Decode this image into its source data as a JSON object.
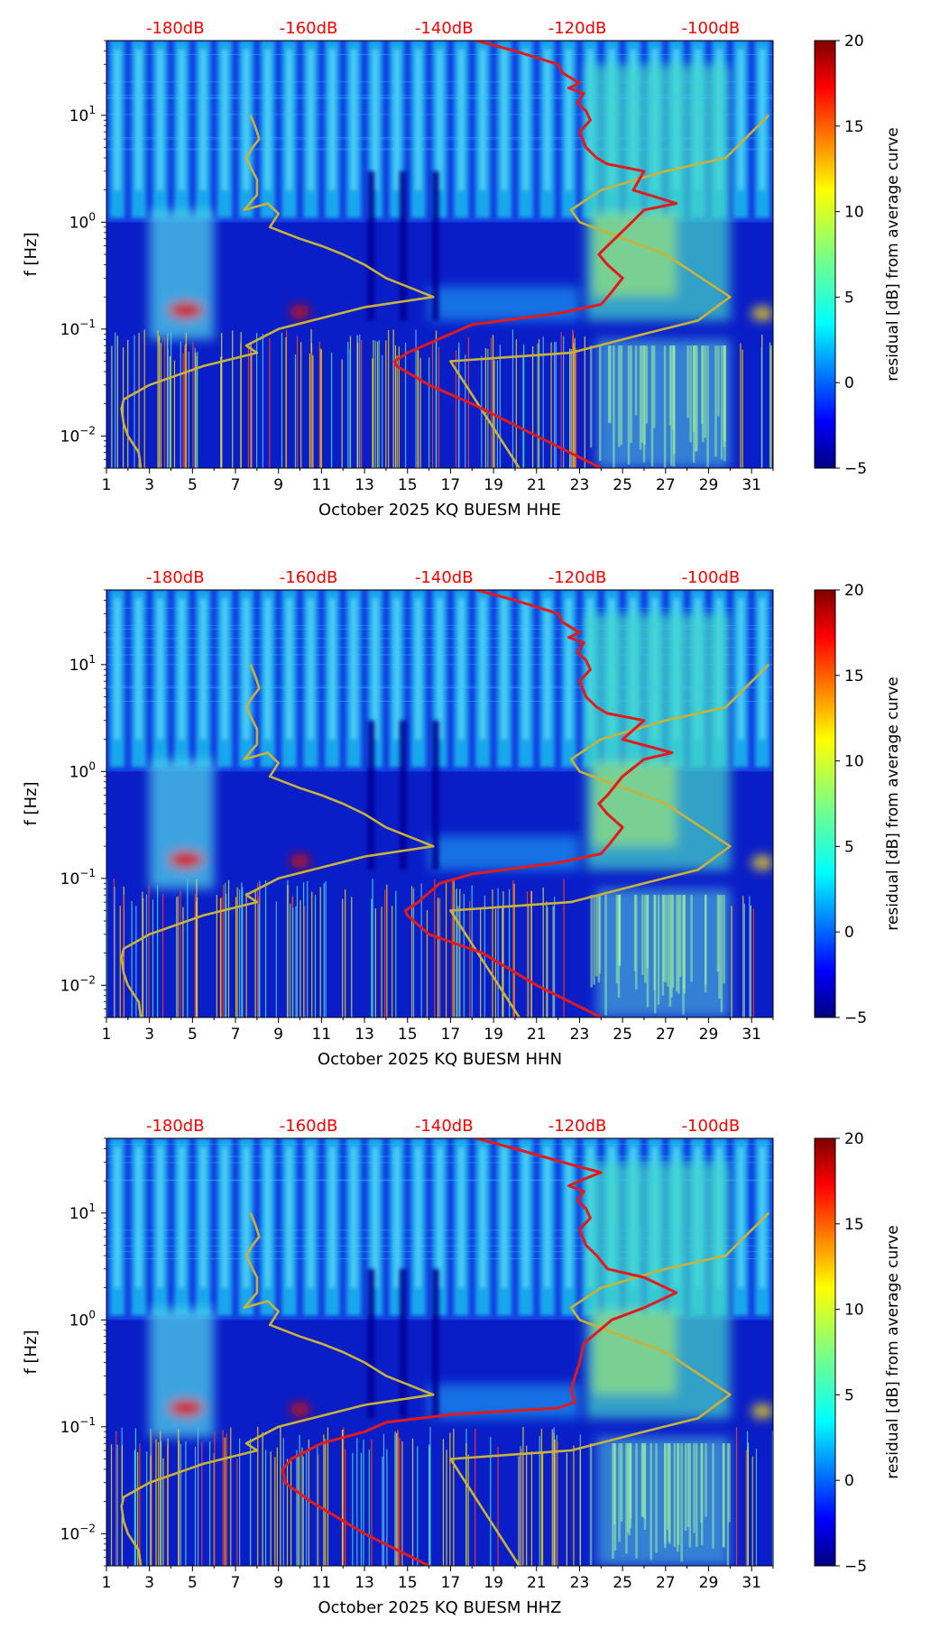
{
  "figure": {
    "title": "",
    "colormap": "jet"
  },
  "colors": {
    "noise_model": "#c9b23a",
    "psd_curve": "#e31a1c",
    "top_labels": "#ff0000",
    "colorbar_stops": [
      "#00007f",
      "#0000ff",
      "#007fff",
      "#00ffff",
      "#7fff7f",
      "#ffff00",
      "#ff7f00",
      "#ff0000",
      "#7f0000"
    ]
  },
  "chart_data": [
    {
      "type": "heatmap",
      "panel_id": "hhe",
      "xlabel": "October 2025 KQ BUESM  HHE",
      "ylabel": "f [Hz]",
      "x_range": [
        1,
        32
      ],
      "x_ticks": [
        1,
        3,
        5,
        7,
        9,
        11,
        13,
        15,
        17,
        19,
        21,
        23,
        25,
        27,
        29,
        31
      ],
      "y_scale": "log",
      "y_range": [
        0.005,
        50
      ],
      "y_ticks": [
        {
          "value": 0.01,
          "base": "10",
          "exp": "−2"
        },
        {
          "value": 0.1,
          "base": "10",
          "exp": "−1"
        },
        {
          "value": 1,
          "base": "10",
          "exp": "0"
        },
        {
          "value": 10,
          "base": "10",
          "exp": "1"
        }
      ],
      "top_axis_labels": [
        "-180dB",
        "-160dB",
        "-140dB",
        "-120dB",
        "-100dB"
      ],
      "colorbar": {
        "label": "residual [dB] from average curve",
        "min": -5,
        "max": 20,
        "ticks": [
          -5,
          0,
          5,
          10,
          15,
          20
        ],
        "tick_labels": [
          "−5",
          "0",
          "5",
          "10",
          "15",
          "20"
        ]
      },
      "series": [
        {
          "name": "noise model",
          "color": "#c9b23a",
          "x": [
            2.6,
            2.5,
            2.0,
            1.8,
            1.7,
            1.8,
            3.0,
            5.5,
            8.0,
            7.5,
            9.0,
            13.0,
            16.2,
            14.0,
            13.0,
            12.0,
            11.0,
            10.0,
            8.6,
            9.0,
            8.5,
            7.4,
            8.0,
            8.0,
            7.8,
            7.5,
            7.8,
            8.1,
            8.0,
            7.9,
            7.7
          ],
          "y": [
            0.005,
            0.007,
            0.01,
            0.013,
            0.018,
            0.022,
            0.03,
            0.045,
            0.06,
            0.07,
            0.1,
            0.16,
            0.2,
            0.3,
            0.4,
            0.5,
            0.6,
            0.7,
            0.9,
            1.2,
            1.5,
            1.3,
            1.8,
            2.5,
            3.0,
            4.0,
            5.0,
            6.0,
            7.0,
            8.0,
            10.0
          ]
        },
        {
          "name": "noise model (high)",
          "color": "#c9b23a",
          "x": [
            20.2,
            17.0,
            22.6,
            26.0,
            28.5,
            30.0,
            27.0,
            23.0,
            22.6,
            24.0,
            27.0,
            29.8,
            31.8
          ],
          "y": [
            0.005,
            0.05,
            0.06,
            0.09,
            0.12,
            0.2,
            0.5,
            1.0,
            1.3,
            2.0,
            3.0,
            4.0,
            10.0
          ]
        },
        {
          "name": "PSD curve",
          "color": "#e31a1c",
          "x": [
            24.0,
            21.0,
            18.0,
            16.0,
            14.5,
            14.4,
            15.0,
            17.0,
            18.0,
            22.0,
            24.0,
            24.4,
            25.0,
            24.3,
            23.9,
            24.3,
            25.2,
            26.0,
            27.5,
            25.5,
            26.0,
            24.3,
            23.8,
            23.3,
            23.0,
            23.5,
            23.3,
            22.9,
            23.2,
            22.5,
            23.0,
            22.2,
            22.0,
            20.0,
            18.2
          ],
          "y": [
            0.005,
            0.01,
            0.02,
            0.03,
            0.045,
            0.05,
            0.06,
            0.09,
            0.11,
            0.14,
            0.17,
            0.21,
            0.3,
            0.4,
            0.5,
            0.6,
            0.9,
            1.3,
            1.5,
            2.0,
            3.0,
            3.5,
            4.0,
            5.0,
            7.0,
            9.0,
            11.0,
            13.0,
            16.0,
            18.0,
            20.0,
            25.0,
            30.0,
            40.0,
            50.0
          ]
        }
      ]
    },
    {
      "type": "heatmap",
      "panel_id": "hhn",
      "xlabel": "October 2025 KQ BUESM  HHN",
      "ylabel": "f [Hz]",
      "x_range": [
        1,
        32
      ],
      "x_ticks": [
        1,
        3,
        5,
        7,
        9,
        11,
        13,
        15,
        17,
        19,
        21,
        23,
        25,
        27,
        29,
        31
      ],
      "y_scale": "log",
      "y_range": [
        0.005,
        50
      ],
      "y_ticks": [
        {
          "value": 0.01,
          "base": "10",
          "exp": "−2"
        },
        {
          "value": 0.1,
          "base": "10",
          "exp": "−1"
        },
        {
          "value": 1,
          "base": "10",
          "exp": "0"
        },
        {
          "value": 10,
          "base": "10",
          "exp": "1"
        }
      ],
      "top_axis_labels": [
        "-180dB",
        "-160dB",
        "-140dB",
        "-120dB",
        "-100dB"
      ],
      "colorbar": {
        "label": "residual [dB] from average curve",
        "min": -5,
        "max": 20,
        "ticks": [
          -5,
          0,
          5,
          10,
          15,
          20
        ],
        "tick_labels": [
          "−5",
          "0",
          "5",
          "10",
          "15",
          "20"
        ]
      },
      "series": [
        {
          "name": "noise model",
          "color": "#c9b23a",
          "x": [
            2.6,
            2.5,
            2.0,
            1.8,
            1.7,
            1.8,
            3.0,
            5.5,
            8.0,
            7.5,
            9.0,
            13.0,
            16.2,
            14.0,
            13.0,
            12.0,
            11.0,
            10.0,
            8.6,
            9.0,
            8.5,
            7.4,
            8.0,
            8.0,
            7.8,
            7.5,
            7.8,
            8.1,
            8.0,
            7.9,
            7.7
          ],
          "y": [
            0.005,
            0.007,
            0.01,
            0.013,
            0.018,
            0.022,
            0.03,
            0.045,
            0.06,
            0.07,
            0.1,
            0.16,
            0.2,
            0.3,
            0.4,
            0.5,
            0.6,
            0.7,
            0.9,
            1.2,
            1.5,
            1.3,
            1.8,
            2.5,
            3.0,
            4.0,
            5.0,
            6.0,
            7.0,
            8.0,
            10.0
          ]
        },
        {
          "name": "noise model (high)",
          "color": "#c9b23a",
          "x": [
            20.2,
            17.0,
            22.6,
            26.0,
            28.5,
            30.0,
            27.0,
            23.0,
            22.6,
            24.0,
            27.0,
            29.8,
            31.8
          ],
          "y": [
            0.005,
            0.05,
            0.06,
            0.09,
            0.12,
            0.2,
            0.5,
            1.0,
            1.3,
            2.0,
            3.0,
            4.0,
            10.0
          ]
        },
        {
          "name": "PSD curve",
          "color": "#e31a1c",
          "x": [
            24.0,
            21.0,
            18.5,
            16.0,
            15.0,
            14.9,
            15.5,
            16.5,
            18.0,
            22.0,
            24.0,
            24.4,
            25.0,
            24.3,
            23.9,
            24.3,
            25.0,
            26.0,
            27.3,
            25.0,
            26.0,
            24.3,
            23.8,
            23.3,
            23.0,
            23.5,
            23.3,
            22.9,
            23.2,
            22.5,
            23.0,
            22.2,
            22.0,
            20.0,
            18.2
          ],
          "y": [
            0.005,
            0.01,
            0.02,
            0.03,
            0.045,
            0.05,
            0.06,
            0.09,
            0.11,
            0.14,
            0.17,
            0.21,
            0.3,
            0.4,
            0.5,
            0.6,
            0.9,
            1.3,
            1.5,
            2.0,
            3.0,
            3.5,
            4.0,
            5.0,
            7.0,
            9.0,
            11.0,
            13.0,
            16.0,
            18.0,
            20.0,
            25.0,
            30.0,
            40.0,
            50.0
          ]
        }
      ]
    },
    {
      "type": "heatmap",
      "panel_id": "hhz",
      "xlabel": "October 2025 KQ BUESM  HHZ",
      "ylabel": "f [Hz]",
      "x_range": [
        1,
        32
      ],
      "x_ticks": [
        1,
        3,
        5,
        7,
        9,
        11,
        13,
        15,
        17,
        19,
        21,
        23,
        25,
        27,
        29,
        31
      ],
      "y_scale": "log",
      "y_range": [
        0.005,
        50
      ],
      "y_ticks": [
        {
          "value": 0.01,
          "base": "10",
          "exp": "−2"
        },
        {
          "value": 0.1,
          "base": "10",
          "exp": "−1"
        },
        {
          "value": 1,
          "base": "10",
          "exp": "0"
        },
        {
          "value": 10,
          "base": "10",
          "exp": "1"
        }
      ],
      "top_axis_labels": [
        "-180dB",
        "-160dB",
        "-140dB",
        "-120dB",
        "-100dB"
      ],
      "colorbar": {
        "label": "residual [dB] from average curve",
        "min": -5,
        "max": 20,
        "ticks": [
          -5,
          0,
          5,
          10,
          15,
          20
        ],
        "tick_labels": [
          "−5",
          "0",
          "5",
          "10",
          "15",
          "20"
        ]
      },
      "series": [
        {
          "name": "noise model",
          "color": "#c9b23a",
          "x": [
            2.6,
            2.5,
            2.0,
            1.8,
            1.7,
            1.8,
            3.0,
            5.5,
            8.0,
            7.5,
            9.0,
            13.0,
            16.2,
            14.0,
            13.0,
            12.0,
            11.0,
            10.0,
            8.6,
            9.0,
            8.5,
            7.4,
            8.0,
            8.0,
            7.8,
            7.5,
            7.8,
            8.1,
            8.0,
            7.9,
            7.7
          ],
          "y": [
            0.005,
            0.007,
            0.01,
            0.013,
            0.018,
            0.022,
            0.03,
            0.045,
            0.06,
            0.07,
            0.1,
            0.16,
            0.2,
            0.3,
            0.4,
            0.5,
            0.6,
            0.7,
            0.9,
            1.2,
            1.5,
            1.3,
            1.8,
            2.5,
            3.0,
            4.0,
            5.0,
            6.0,
            7.0,
            8.0,
            10.0
          ]
        },
        {
          "name": "noise model (high)",
          "color": "#c9b23a",
          "x": [
            20.2,
            17.0,
            22.6,
            26.0,
            28.5,
            30.0,
            27.0,
            23.0,
            22.6,
            24.0,
            27.0,
            29.8,
            31.8
          ],
          "y": [
            0.005,
            0.05,
            0.06,
            0.09,
            0.12,
            0.2,
            0.5,
            1.0,
            1.3,
            2.0,
            3.0,
            4.0,
            10.0
          ]
        },
        {
          "name": "PSD curve",
          "color": "#e31a1c",
          "x": [
            16.0,
            13.0,
            10.5,
            9.3,
            9.2,
            9.6,
            11.0,
            13.0,
            14.0,
            17.0,
            22.0,
            22.8,
            22.6,
            22.8,
            23.0,
            23.2,
            24.5,
            26.0,
            27.5,
            26.0,
            24.3,
            23.8,
            23.3,
            23.0,
            23.5,
            23.3,
            22.9,
            23.2,
            22.5,
            23.0,
            24.0,
            23.0,
            20.0,
            18.2
          ],
          "y": [
            0.005,
            0.01,
            0.02,
            0.03,
            0.04,
            0.05,
            0.07,
            0.09,
            0.11,
            0.13,
            0.15,
            0.17,
            0.22,
            0.3,
            0.4,
            0.6,
            1.0,
            1.3,
            1.8,
            2.5,
            3.0,
            4.0,
            5.0,
            7.0,
            9.0,
            11.0,
            13.0,
            16.0,
            18.0,
            20.0,
            24.0,
            27.0,
            40.0,
            50.0
          ]
        }
      ]
    }
  ]
}
